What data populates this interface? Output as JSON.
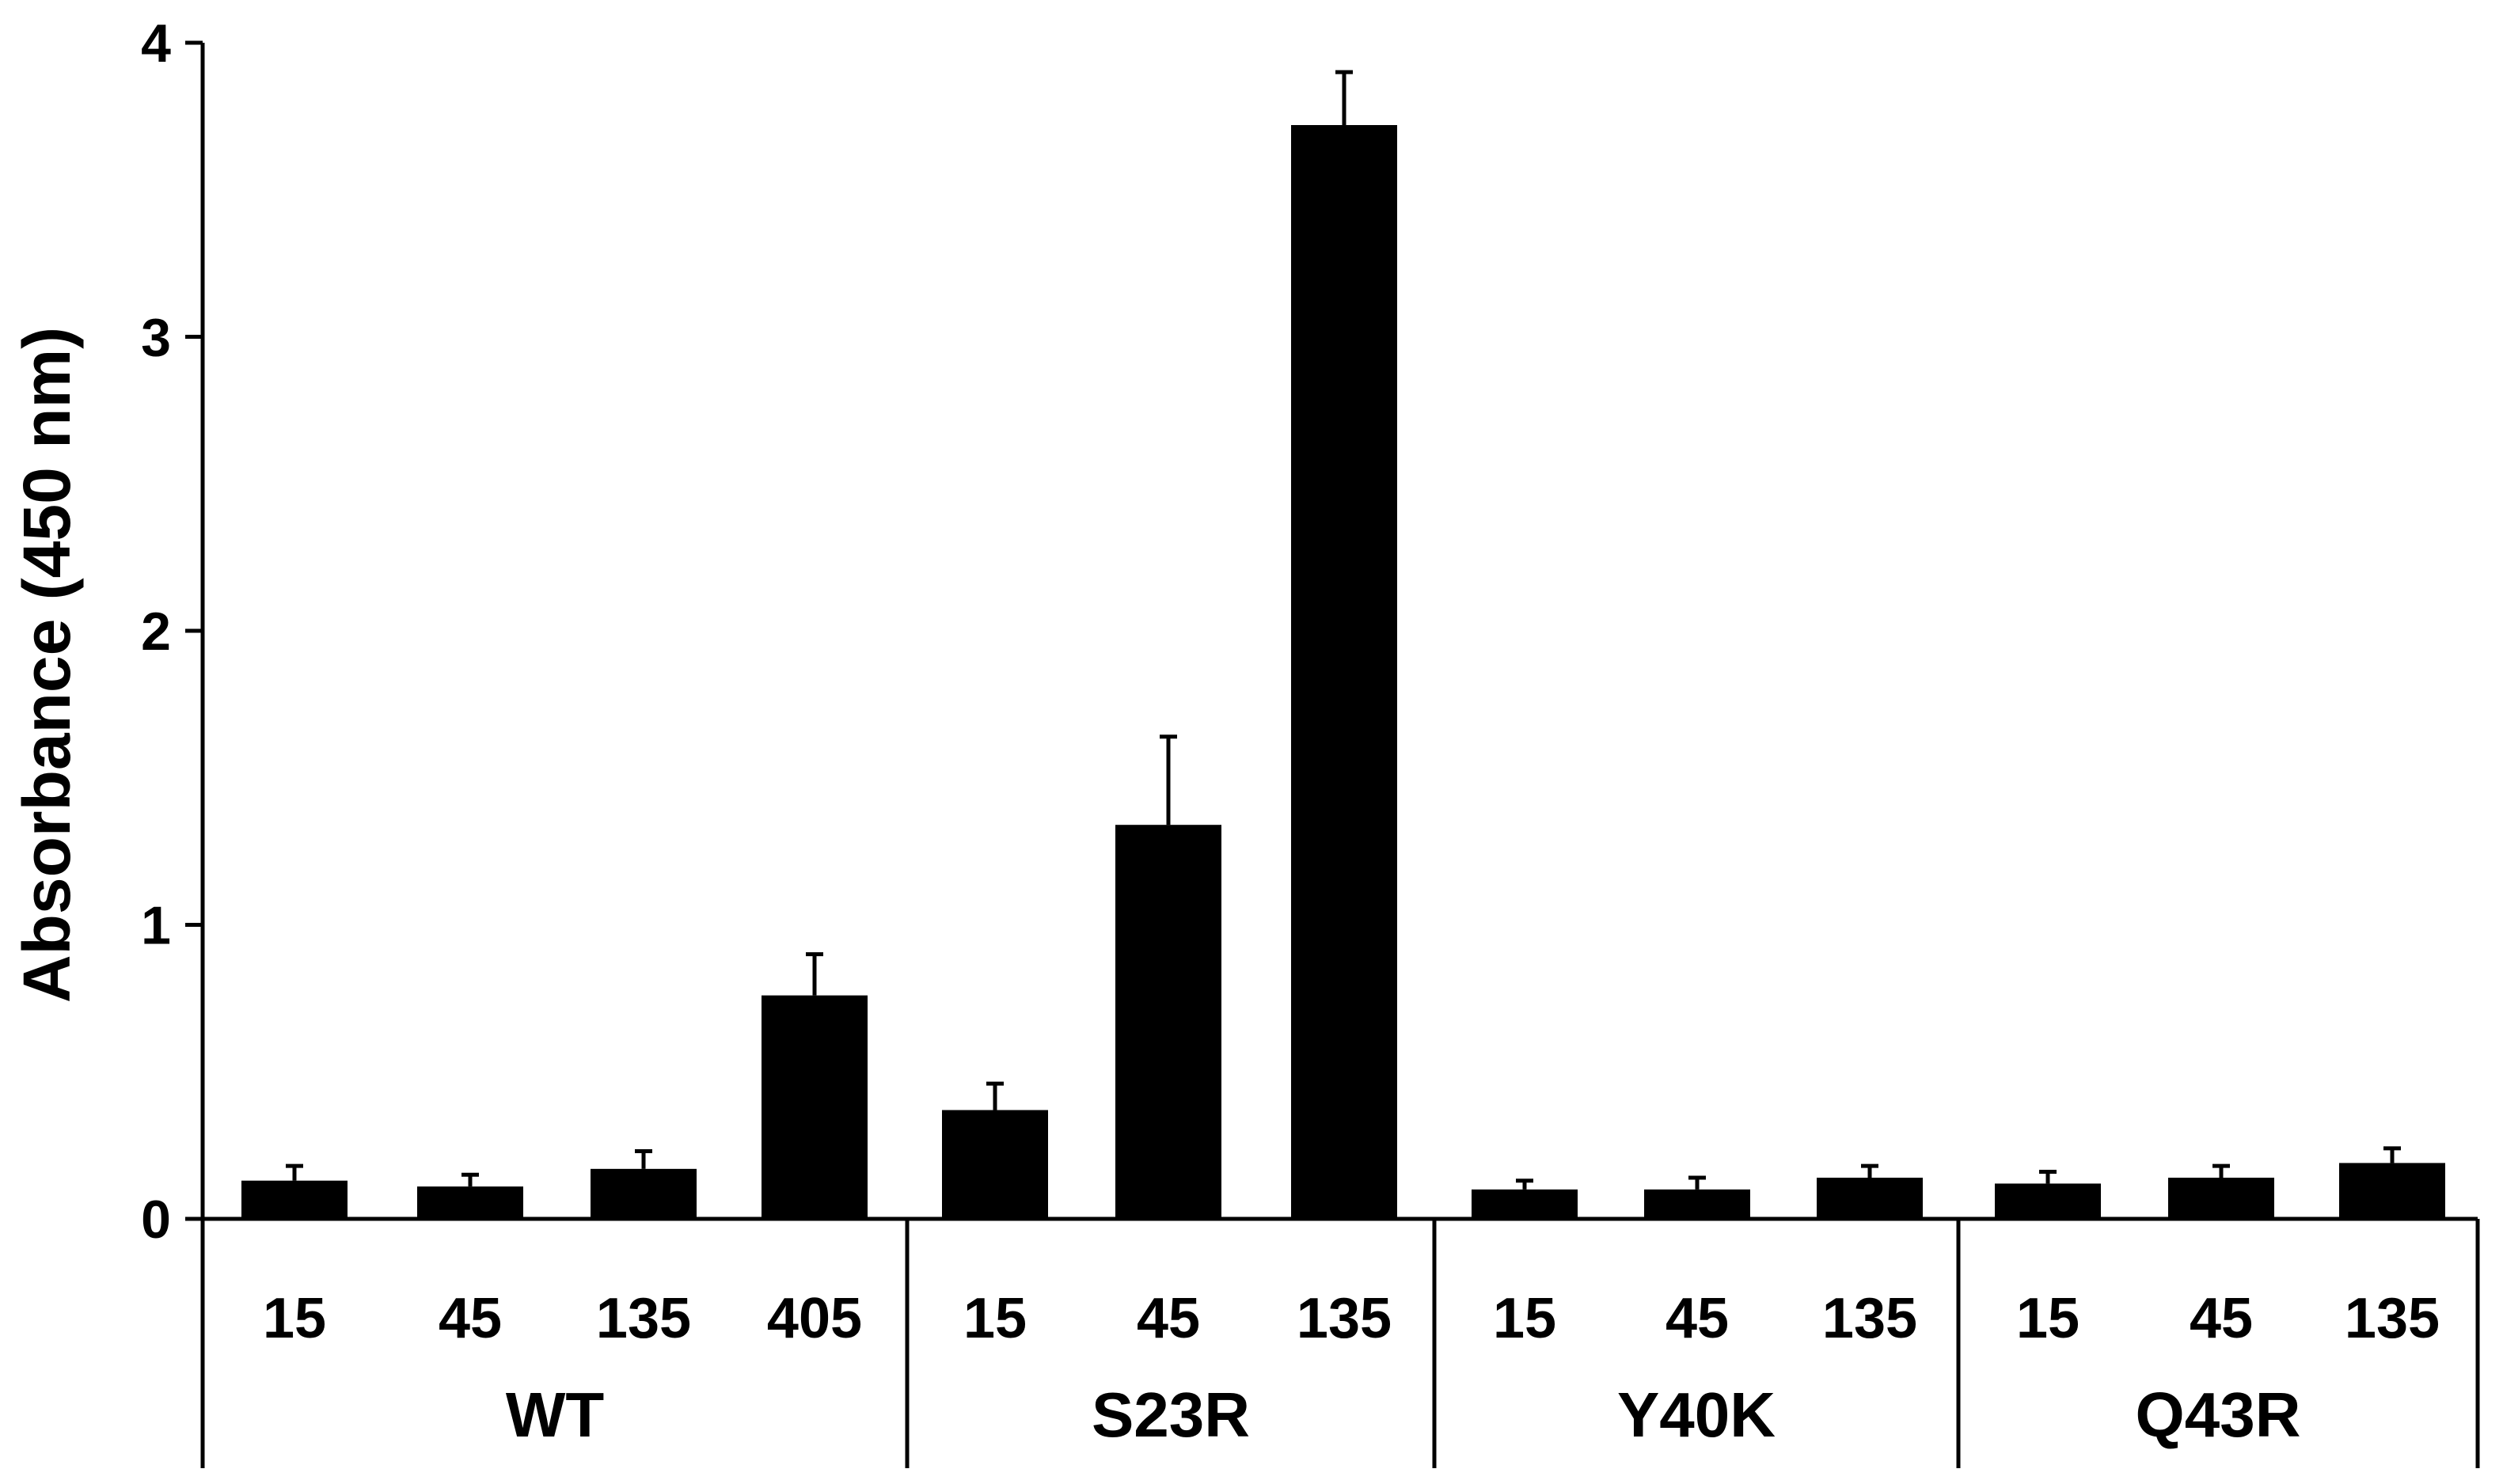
{
  "chart_data": {
    "type": "bar",
    "ylabel": "Absorbance (450 nm)",
    "xlabel": "",
    "ylim": [
      0,
      4
    ],
    "yticks": [
      0,
      1,
      2,
      3,
      4
    ],
    "grid": false,
    "legend": "none",
    "bar_color": "#000000",
    "groups": [
      {
        "label": "WT",
        "categories": [
          "15",
          "45",
          "135",
          "405"
        ],
        "values": [
          0.13,
          0.11,
          0.17,
          0.76
        ],
        "errors": [
          0.05,
          0.04,
          0.06,
          0.14
        ]
      },
      {
        "label": "S23R",
        "categories": [
          "15",
          "45",
          "135"
        ],
        "values": [
          0.37,
          1.34,
          3.72
        ],
        "errors": [
          0.09,
          0.3,
          0.18
        ]
      },
      {
        "label": "Y40K",
        "categories": [
          "15",
          "45",
          "135"
        ],
        "values": [
          0.1,
          0.1,
          0.14
        ],
        "errors": [
          0.03,
          0.04,
          0.04
        ]
      },
      {
        "label": "Q43R",
        "categories": [
          "15",
          "45",
          "135"
        ],
        "values": [
          0.12,
          0.14,
          0.19
        ],
        "errors": [
          0.04,
          0.04,
          0.05
        ]
      }
    ]
  }
}
